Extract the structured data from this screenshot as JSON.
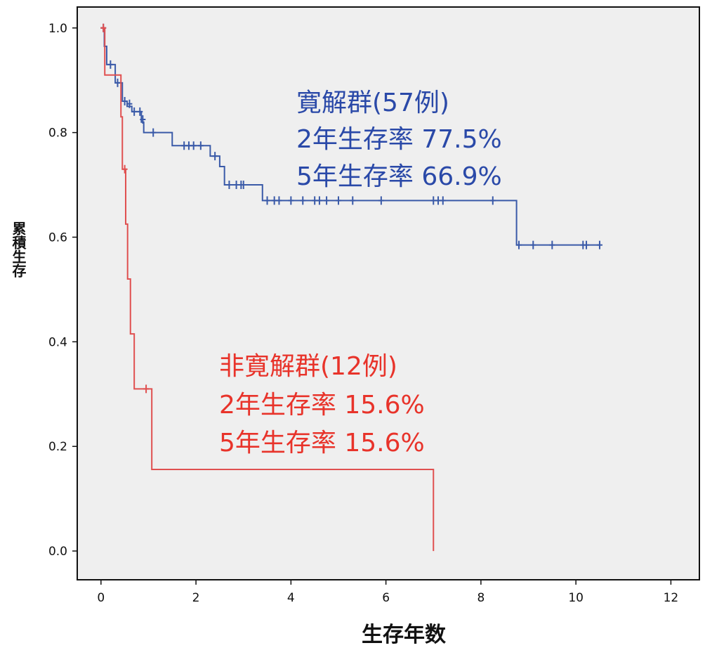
{
  "chart_data": {
    "type": "line",
    "title": "",
    "xlabel": "生存年数",
    "ylabel": "累積生存",
    "xlim": [
      -0.5,
      12.6
    ],
    "ylim": [
      -0.055,
      1.04
    ],
    "xticks": [
      0,
      2,
      4,
      6,
      8,
      10,
      12
    ],
    "yticks": [
      0.0,
      0.2,
      0.4,
      0.6,
      0.8,
      1.0
    ],
    "ytick_labels": [
      "0.0",
      "0.2",
      "0.4",
      "0.6",
      "0.8",
      "1.0"
    ],
    "grid": false,
    "plot_background": "#efefef",
    "series": [
      {
        "name": "",
        "color": "#3a5aa8",
        "steps": [
          [
            0,
            1.0
          ],
          [
            0.07,
            0.965
          ],
          [
            0.12,
            0.93
          ],
          [
            0.3,
            0.895
          ],
          [
            0.45,
            0.86
          ],
          [
            0.55,
            0.85
          ],
          [
            0.65,
            0.84
          ],
          [
            0.85,
            0.82
          ],
          [
            0.9,
            0.8
          ],
          [
            1.5,
            0.775
          ],
          [
            2.3,
            0.755
          ],
          [
            2.5,
            0.735
          ],
          [
            2.6,
            0.7
          ],
          [
            3.4,
            0.67
          ],
          [
            8.75,
            0.585
          ],
          [
            10.5,
            0.585
          ]
        ],
        "censored": [
          [
            0.05,
            1.0
          ],
          [
            0.2,
            0.93
          ],
          [
            0.35,
            0.895
          ],
          [
            0.5,
            0.86
          ],
          [
            0.6,
            0.855
          ],
          [
            0.7,
            0.84
          ],
          [
            0.82,
            0.84
          ],
          [
            0.88,
            0.825
          ],
          [
            1.1,
            0.8
          ],
          [
            1.75,
            0.775
          ],
          [
            1.85,
            0.775
          ],
          [
            1.95,
            0.775
          ],
          [
            2.1,
            0.775
          ],
          [
            2.4,
            0.755
          ],
          [
            2.7,
            0.7
          ],
          [
            2.85,
            0.7
          ],
          [
            2.95,
            0.7
          ],
          [
            3.0,
            0.7
          ],
          [
            3.5,
            0.67
          ],
          [
            3.65,
            0.67
          ],
          [
            3.75,
            0.67
          ],
          [
            4.0,
            0.67
          ],
          [
            4.25,
            0.67
          ],
          [
            4.5,
            0.67
          ],
          [
            4.6,
            0.67
          ],
          [
            4.75,
            0.67
          ],
          [
            5.0,
            0.67
          ],
          [
            5.3,
            0.67
          ],
          [
            5.9,
            0.67
          ],
          [
            7.0,
            0.67
          ],
          [
            7.1,
            0.67
          ],
          [
            7.2,
            0.67
          ],
          [
            8.25,
            0.67
          ],
          [
            8.8,
            0.585
          ],
          [
            9.1,
            0.585
          ],
          [
            9.5,
            0.585
          ],
          [
            10.15,
            0.585
          ],
          [
            10.22,
            0.585
          ],
          [
            10.5,
            0.585
          ]
        ]
      },
      {
        "name": "",
        "color": "#e05050",
        "steps": [
          [
            0,
            1.0
          ],
          [
            0.08,
            0.91
          ],
          [
            0.42,
            0.83
          ],
          [
            0.45,
            0.73
          ],
          [
            0.52,
            0.625
          ],
          [
            0.56,
            0.52
          ],
          [
            0.62,
            0.415
          ],
          [
            0.7,
            0.31
          ],
          [
            1.07,
            0.156
          ],
          [
            7.0,
            0.0
          ]
        ],
        "censored": [
          [
            0.05,
            1.0
          ],
          [
            0.5,
            0.73
          ],
          [
            0.95,
            0.31
          ]
        ]
      }
    ],
    "annotations": [
      {
        "color": "#2a49a8",
        "lines": [
          "寛解群(57例)",
          "2年生存率  77.5%",
          "5年生存率  66.9%"
        ]
      },
      {
        "color": "#e8332a",
        "lines": [
          "非寛解群(12例)",
          "2年生存率  15.6%",
          "5年生存率  15.6%"
        ]
      }
    ]
  }
}
